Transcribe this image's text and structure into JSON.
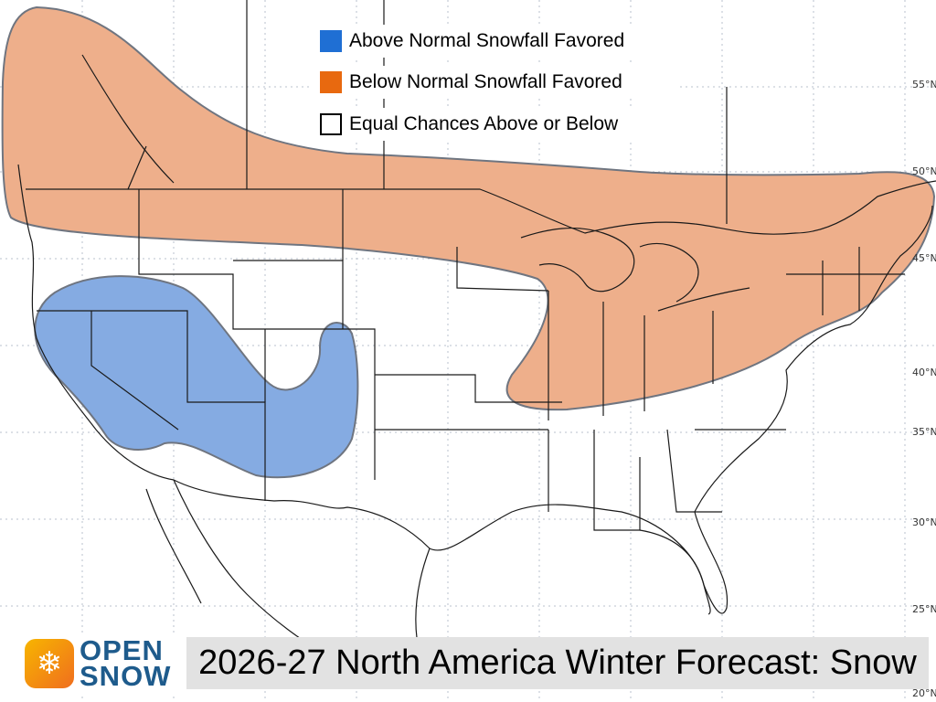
{
  "map": {
    "title": "2026-27 North America Winter Forecast: Snow",
    "brand": {
      "line1": "OPEN",
      "line2": "SNOW",
      "icon": "snowflake-icon"
    },
    "legend": [
      {
        "label": "Above Normal Snowfall Favored",
        "color": "#1f6fd4"
      },
      {
        "label": "Below Normal Snowfall Favored",
        "color": "#e8690f"
      },
      {
        "label": "Equal Chances Above or Below",
        "color": "#ffffff"
      }
    ],
    "regions": [
      {
        "name": "Below Normal Snowfall Favored",
        "fill": "#eeaf8b"
      },
      {
        "name": "Above Normal Snowfall Favored",
        "fill": "#85abe2"
      }
    ],
    "latitude_labels": [
      "55°N",
      "50°N",
      "45°N",
      "40°N",
      "35°N",
      "30°N",
      "25°N",
      "20°N"
    ]
  }
}
